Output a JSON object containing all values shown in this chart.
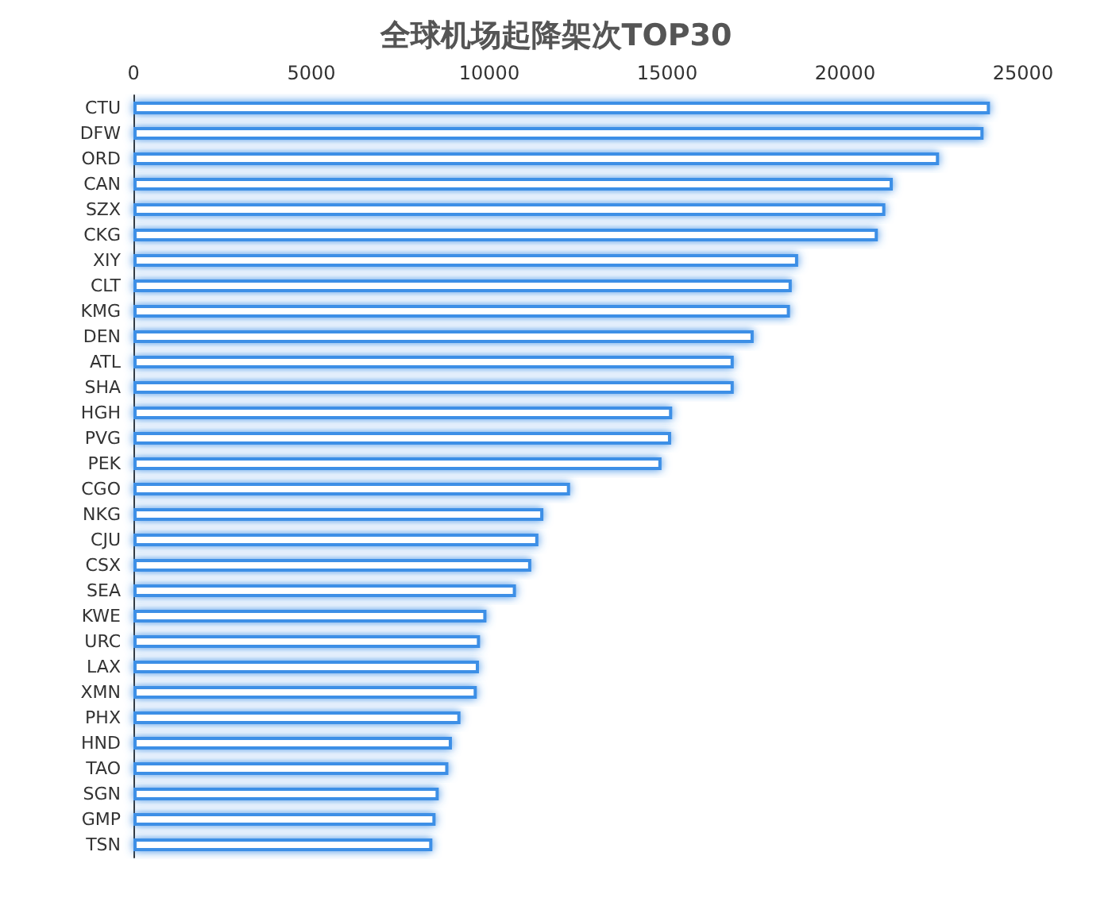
{
  "chart_data": {
    "type": "bar",
    "orientation": "horizontal",
    "title": "全球机场起降架次TOP30",
    "categories": [
      "CTU",
      "DFW",
      "ORD",
      "CAN",
      "SZX",
      "CKG",
      "XIY",
      "CLT",
      "KMG",
      "DEN",
      "ATL",
      "SHA",
      "HGH",
      "PVG",
      "PEK",
      "CGO",
      "NKG",
      "CJU",
      "CSX",
      "SEA",
      "KWE",
      "URC",
      "LAX",
      "XMN",
      "PHX",
      "HND",
      "TAO",
      "SGN",
      "GMP",
      "TSN"
    ],
    "values": [
      24070,
      23890,
      22640,
      21340,
      21130,
      20920,
      18680,
      18500,
      18450,
      17430,
      16870,
      16870,
      15140,
      15110,
      14840,
      12270,
      11520,
      11380,
      11180,
      10750,
      9920,
      9740,
      9710,
      9650,
      9190,
      8950,
      8850,
      8580,
      8490,
      8400
    ],
    "color": "#3d8fe6",
    "xlim": [
      0,
      25000
    ],
    "xticks": [
      0,
      5000,
      10000,
      15000,
      20000,
      25000
    ],
    "grid": false
  }
}
